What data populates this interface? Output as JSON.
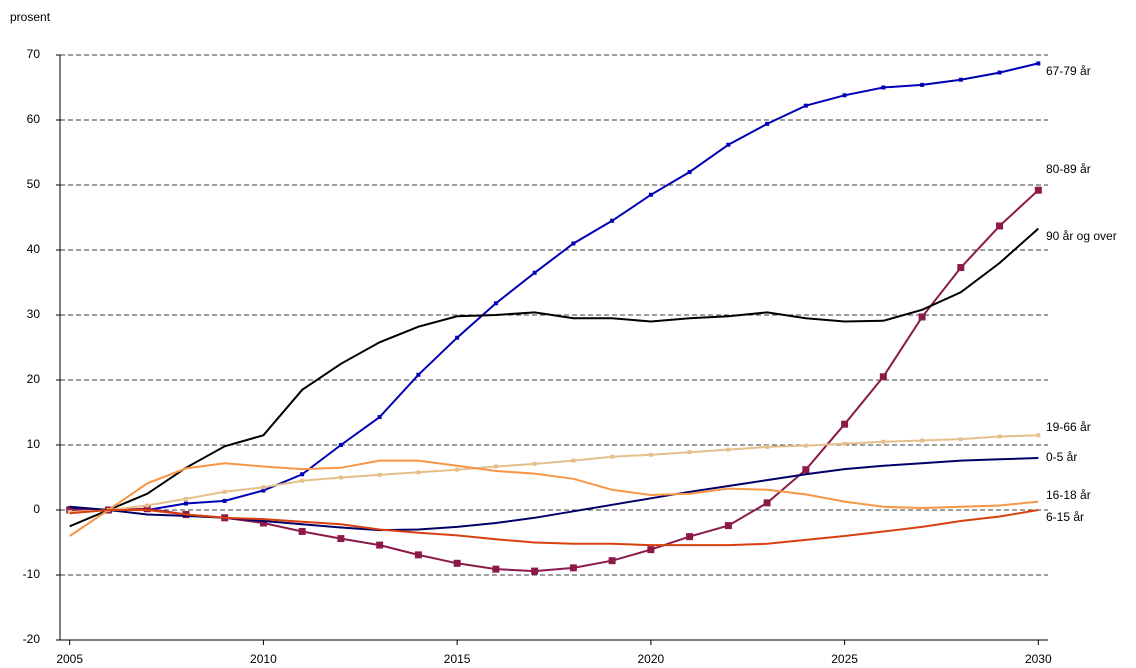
{
  "chart_data": {
    "type": "line",
    "y_label": "prosent",
    "x": [
      2005,
      2006,
      2007,
      2008,
      2009,
      2010,
      2011,
      2012,
      2013,
      2014,
      2015,
      2016,
      2017,
      2018,
      2019,
      2020,
      2021,
      2022,
      2023,
      2024,
      2025,
      2026,
      2027,
      2028,
      2029,
      2030
    ],
    "xlim": [
      2004.75,
      2030.25
    ],
    "xticks": [
      2005,
      2010,
      2015,
      2020,
      2025,
      2030
    ],
    "ylim": [
      -20,
      70
    ],
    "yticks": [
      -20,
      -10,
      0,
      10,
      20,
      30,
      40,
      50,
      60,
      70
    ],
    "grid": true,
    "series": [
      {
        "name": "67-79 år",
        "color": "#0000b4",
        "marker": "small-square",
        "values": [
          0.3,
          0,
          0,
          1,
          1.4,
          3,
          5.5,
          10,
          14.3,
          20.8,
          26.5,
          31.8,
          36.5,
          41,
          44.5,
          48.5,
          52,
          56.2,
          59.4,
          62.2,
          63.8,
          65,
          65.4,
          66.2,
          67.3,
          68.7
        ]
      },
      {
        "name": "80-89 år",
        "color": "#8b1a4a",
        "marker": "square",
        "values": [
          0,
          0,
          0.2,
          -0.7,
          -1.2,
          -2,
          -3.3,
          -4.4,
          -5.4,
          -6.9,
          -8.2,
          -9.1,
          -9.4,
          -8.9,
          -7.8,
          -6.1,
          -4.1,
          -2.4,
          1.1,
          6.2,
          13.2,
          20.5,
          29.7,
          37.3,
          43.7,
          49.2
        ]
      },
      {
        "name": "90 år og over",
        "color": "#000000",
        "marker": "none",
        "values": [
          -2.5,
          0,
          2.5,
          6.5,
          9.8,
          11.5,
          18.5,
          22.5,
          25.8,
          28.2,
          29.8,
          30,
          30.4,
          29.5,
          29.5,
          29,
          29.5,
          29.8,
          30.4,
          29.5,
          29,
          29.1,
          30.8,
          33.5,
          38,
          43.3
        ]
      },
      {
        "name": "19-66 år",
        "color": "#e6c08c",
        "marker": "small-square",
        "values": [
          -0.3,
          0,
          0.7,
          1.7,
          2.8,
          3.5,
          4.5,
          5,
          5.4,
          5.8,
          6.2,
          6.7,
          7.1,
          7.6,
          8.2,
          8.5,
          8.9,
          9.3,
          9.7,
          9.9,
          10.2,
          10.5,
          10.7,
          10.9,
          11.3,
          11.5
        ]
      },
      {
        "name": "0-5 år",
        "color": "#000066",
        "marker": "none",
        "values": [
          0.5,
          0,
          -0.7,
          -0.9,
          -1.2,
          -1.7,
          -2.2,
          -2.7,
          -3.1,
          -3,
          -2.6,
          -2,
          -1.2,
          -0.2,
          0.8,
          1.8,
          2.8,
          3.7,
          4.6,
          5.5,
          6.3,
          6.8,
          7.2,
          7.6,
          7.8,
          8
        ]
      },
      {
        "name": "16-18 år",
        "color": "#f79646",
        "marker": "none",
        "values": [
          -4,
          0,
          4.1,
          6.4,
          7.2,
          6.7,
          6.3,
          6.5,
          7.6,
          7.6,
          6.8,
          6,
          5.6,
          4.8,
          3.1,
          2.3,
          2.5,
          3.3,
          3.1,
          2.4,
          1.3,
          0.5,
          0.3,
          0.5,
          0.7,
          1.3
        ]
      },
      {
        "name": "6-15 år",
        "color": "#d84010",
        "marker": "none",
        "values": [
          -0.5,
          0,
          0,
          -0.7,
          -1.2,
          -1.4,
          -1.8,
          -2.2,
          -3,
          -3.5,
          -3.9,
          -4.5,
          -5,
          -5.2,
          -5.2,
          -5.4,
          -5.4,
          -5.4,
          -5.2,
          -4.6,
          -4,
          -3.3,
          -2.6,
          -1.7,
          -1,
          0
        ]
      }
    ]
  }
}
